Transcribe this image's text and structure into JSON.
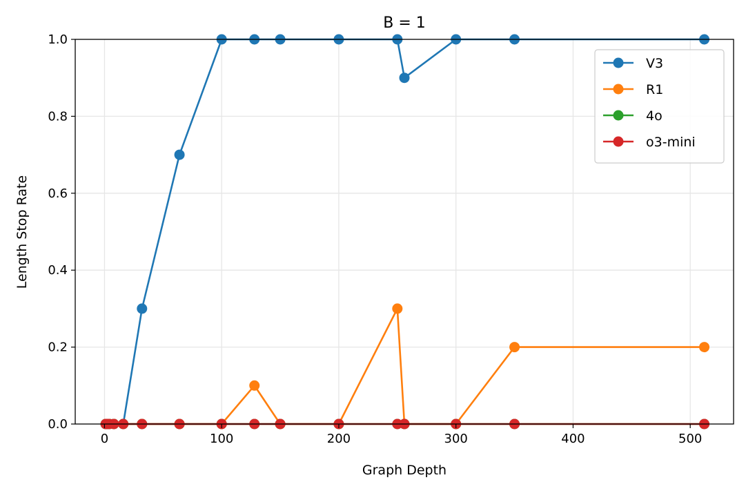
{
  "chart_data": {
    "type": "line",
    "title": "B = 1",
    "xlabel": "Graph Depth",
    "ylabel": "Length Stop Rate",
    "xlim": [
      -25,
      537
    ],
    "ylim": [
      0,
      1.0
    ],
    "x_ticks": [
      0,
      100,
      200,
      300,
      400,
      500
    ],
    "y_ticks": [
      0.0,
      0.2,
      0.4,
      0.6,
      0.8,
      1.0
    ],
    "x_tick_labels": [
      "0",
      "100",
      "200",
      "300",
      "400",
      "500"
    ],
    "y_tick_labels": [
      "0.0",
      "0.2",
      "0.4",
      "0.6",
      "0.8",
      "1.0"
    ],
    "grid": true,
    "legend_position": "top-right",
    "x": [
      1,
      2,
      4,
      8,
      16,
      32,
      64,
      100,
      128,
      150,
      200,
      250,
      256,
      300,
      350,
      512
    ],
    "series": [
      {
        "name": "V3",
        "color": "#1f77b4",
        "values": [
          0,
          0,
          0,
          0,
          0,
          0.3,
          0.7,
          1.0,
          1.0,
          1.0,
          1.0,
          1.0,
          0.9,
          1.0,
          1.0,
          1.0
        ]
      },
      {
        "name": "R1",
        "color": "#ff7f0e",
        "values": [
          0,
          0,
          0,
          0,
          0,
          0,
          0,
          0,
          0.1,
          0,
          0,
          0.3,
          0,
          0,
          0.2,
          0.2
        ]
      },
      {
        "name": "4o",
        "color": "#2ca02c",
        "values": [
          0,
          0,
          0,
          0,
          0,
          0,
          0,
          0,
          0,
          0,
          0,
          0,
          0,
          0,
          0,
          0
        ]
      },
      {
        "name": "o3-mini",
        "color": "#d62728",
        "values": [
          0,
          0,
          0,
          0,
          0,
          0,
          0,
          0,
          0,
          0,
          0,
          0,
          0,
          0,
          0,
          0
        ]
      }
    ]
  }
}
